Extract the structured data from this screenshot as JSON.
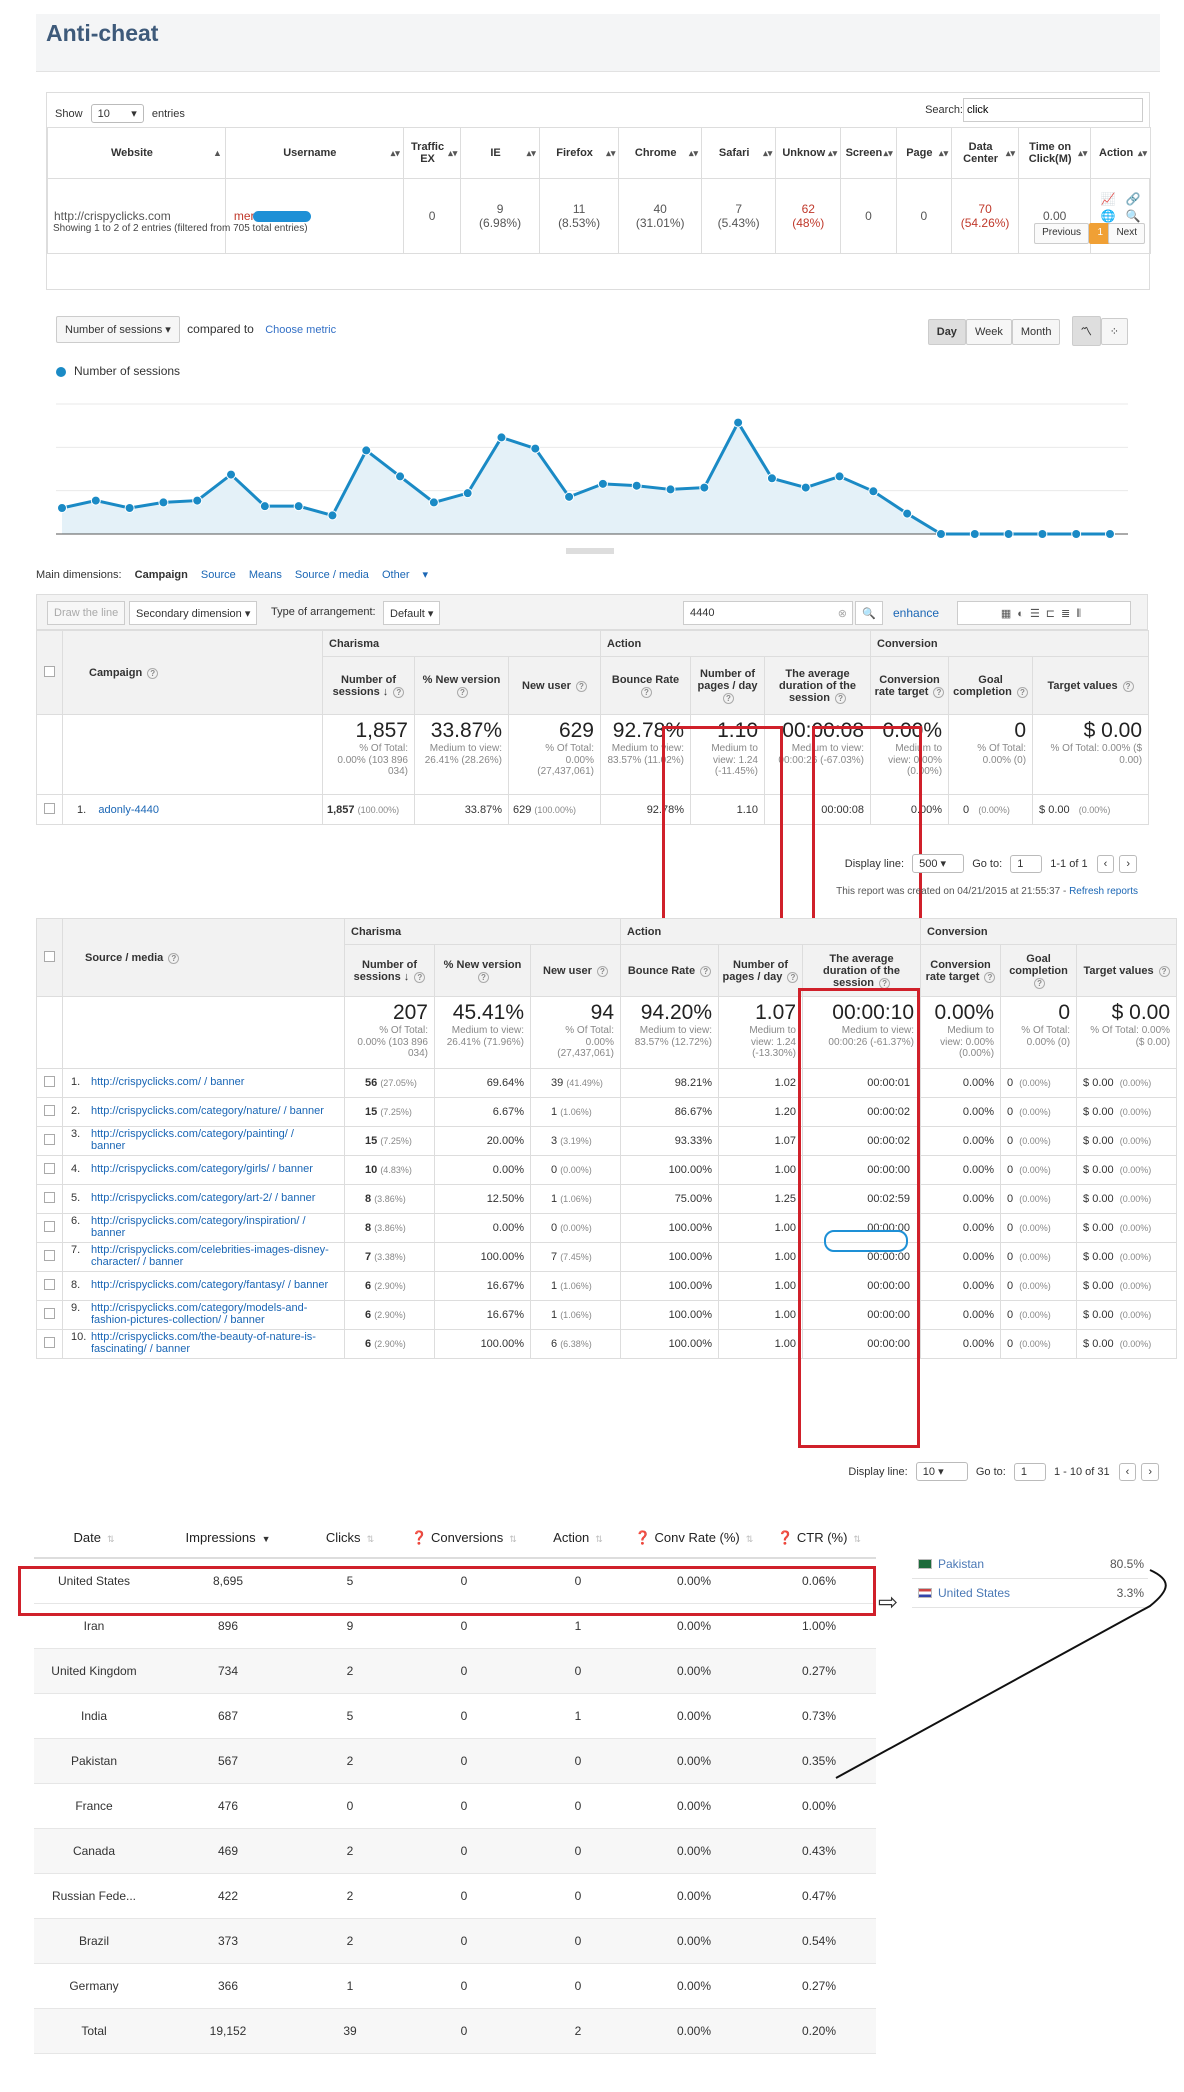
{
  "anticheat": {
    "title": "Anti-cheat",
    "show_label": "Show",
    "entries_value": "10",
    "entries_label": "entries",
    "search_label": "Search:",
    "search_value": "click",
    "columns": [
      "Website",
      "Username",
      "Traffic EX",
      "IE",
      "Firefox",
      "Chrome",
      "Safari",
      "Unknow",
      "Screen",
      "Page",
      "Data Center",
      "Time on Click(M)",
      "Action"
    ],
    "row": {
      "website": "http://crispyclicks.com",
      "username": "mer",
      "traffic_ex": "0",
      "ie": "9",
      "ie_pct": "(6.98%)",
      "firefox": "11",
      "firefox_pct": "(8.53%)",
      "chrome": "40",
      "chrome_pct": "(31.01%)",
      "safari": "7",
      "safari_pct": "(5.43%)",
      "unknow": "62",
      "unknow_pct": "(48%)",
      "screen": "0",
      "page": "0",
      "data_center": "70",
      "data_center_pct": "(54.26%)",
      "time_on_click": "0.00"
    },
    "info": "Showing 1 to 2 of 2 entries (filtered from 705 total entries)",
    "prev_label": "Previous",
    "page_label": "1",
    "next_label": "Next"
  },
  "chart_controls": {
    "metric_select": "Number of sessions",
    "compared_to": "compared to",
    "choose_metric": "Choose metric",
    "day": "Day",
    "week": "Week",
    "month": "Month"
  },
  "chart_data": {
    "type": "area",
    "series": [
      {
        "name": "Number of sessions",
        "values": [
          14,
          18,
          14,
          17,
          18,
          32,
          15,
          15,
          10,
          45,
          31,
          17,
          22,
          52,
          46,
          20,
          27,
          26,
          24,
          25,
          60,
          30,
          25,
          31,
          23,
          11,
          0,
          0,
          0,
          0,
          0,
          0
        ]
      }
    ],
    "ylim": [
      0,
      70
    ],
    "grid": true,
    "legend": "top-left",
    "colors": {
      "line": "#1a8ac5",
      "fill": "#e4f1f8"
    }
  },
  "campaign": {
    "dims_label": "Main dimensions:",
    "dims": [
      "Campaign",
      "Source",
      "Means",
      "Source / media",
      "Other"
    ],
    "draw_line": "Draw the line",
    "secondary": "Secondary dimension",
    "arrangement_label": "Type of arrangement:",
    "arrangement": "Default",
    "filter_value": "4440",
    "enhance": "enhance",
    "first_col": "Campaign",
    "groups": [
      "Charisma",
      "Action",
      "Conversion"
    ],
    "columns": [
      "Number of sessions",
      "% New version",
      "New user",
      "Bounce Rate",
      "Number of pages / day",
      "The average duration of the session",
      "Conversion rate target",
      "Goal completion",
      "Target values"
    ],
    "totals": [
      {
        "big": "1,857",
        "sub": "% Of Total: 0.00% (103 896 034)"
      },
      {
        "big": "33.87%",
        "sub": "Medium to view: 26.41% (28.26%)"
      },
      {
        "big": "629",
        "sub": "% Of Total: 0.00% (27,437,061)"
      },
      {
        "big": "92.78%",
        "sub": "Medium to view: 83.57% (11.02%)"
      },
      {
        "big": "1.10",
        "sub": "Medium to view: 1.24 (-11.45%)"
      },
      {
        "big": "00:00:08",
        "sub": "Medium to view: 00:00:26 (-67.03%)"
      },
      {
        "big": "0.00%",
        "sub": "Medium to view: 0.00% (0.00%)"
      },
      {
        "big": "0",
        "sub": "% Of Total: 0.00% (0)"
      },
      {
        "big": "$ 0.00",
        "sub": "% Of Total: 0.00% ($ 0.00)"
      }
    ],
    "row": {
      "num": "1.",
      "name": "adonly-4440",
      "sessions": "1,857",
      "sessions_pct": "(100.00%)",
      "new_version": "33.87%",
      "new_user": "629",
      "new_user_pct": "(100.00%)",
      "bounce": "92.78%",
      "pages": "1.10",
      "duration": "00:00:08",
      "conv": "0.00%",
      "goal": "0",
      "goal_pct": "(0.00%)",
      "target": "$ 0.00",
      "target_pct": "(0.00%)"
    },
    "display_line_label": "Display line:",
    "display_line": "500",
    "goto_label": "Go to:",
    "goto": "1",
    "range": "1-1 of 1",
    "created": "This report was created on 04/21/2015 at 21:55:37 -",
    "refresh": "Refresh reports"
  },
  "source_media": {
    "first_col": "Source / media",
    "groups": [
      "Charisma",
      "Action",
      "Conversion"
    ],
    "columns": [
      "Number of sessions",
      "% New version",
      "New user",
      "Bounce Rate",
      "Number of pages / day",
      "The average duration of the session",
      "Conversion rate target",
      "Goal completion",
      "Target values"
    ],
    "totals": [
      {
        "big": "207",
        "sub": "% Of Total: 0.00% (103 896 034)"
      },
      {
        "big": "45.41%",
        "sub": "Medium to view: 26.41% (71.96%)"
      },
      {
        "big": "94",
        "sub": "% Of Total: 0.00% (27,437,061)"
      },
      {
        "big": "94.20%",
        "sub": "Medium to view: 83.57% (12.72%)"
      },
      {
        "big": "1.07",
        "sub": "Medium to view: 1.24 (-13.30%)"
      },
      {
        "big": "00:00:10",
        "sub": "Medium to view: 00:00:26 (-61.37%)"
      },
      {
        "big": "0.00%",
        "sub": "Medium to view: 0.00% (0.00%)"
      },
      {
        "big": "0",
        "sub": "% Of Total: 0.00% (0)"
      },
      {
        "big": "$ 0.00",
        "sub": "% Of Total: 0.00% ($ 0.00)"
      }
    ],
    "rows": [
      {
        "num": "1.",
        "name": "http://crispyclicks.com/ / banner",
        "s": "56",
        "sp": "(27.05%)",
        "nv": "69.64%",
        "nu": "39",
        "nup": "(41.49%)",
        "br": "98.21%",
        "pg": "1.02",
        "du": "00:00:01"
      },
      {
        "num": "2.",
        "name": "http://crispyclicks.com/category/nature/ / banner",
        "s": "15",
        "sp": "(7.25%)",
        "nv": "6.67%",
        "nu": "1",
        "nup": "(1.06%)",
        "br": "86.67%",
        "pg": "1.20",
        "du": "00:00:02"
      },
      {
        "num": "3.",
        "name": "http://crispyclicks.com/category/painting/ / banner",
        "s": "15",
        "sp": "(7.25%)",
        "nv": "20.00%",
        "nu": "3",
        "nup": "(3.19%)",
        "br": "93.33%",
        "pg": "1.07",
        "du": "00:00:02"
      },
      {
        "num": "4.",
        "name": "http://crispyclicks.com/category/girls/ / banner",
        "s": "10",
        "sp": "(4.83%)",
        "nv": "0.00%",
        "nu": "0",
        "nup": "(0.00%)",
        "br": "100.00%",
        "pg": "1.00",
        "du": "00:00:00"
      },
      {
        "num": "5.",
        "name": "http://crispyclicks.com/category/art-2/ / banner",
        "s": "8",
        "sp": "(3.86%)",
        "nv": "12.50%",
        "nu": "1",
        "nup": "(1.06%)",
        "br": "75.00%",
        "pg": "1.25",
        "du": "00:02:59"
      },
      {
        "num": "6.",
        "name": "http://crispyclicks.com/category/inspiration/ / banner",
        "s": "8",
        "sp": "(3.86%)",
        "nv": "0.00%",
        "nu": "0",
        "nup": "(0.00%)",
        "br": "100.00%",
        "pg": "1.00",
        "du": "00:00:00"
      },
      {
        "num": "7.",
        "name": "http://crispyclicks.com/celebrities-images-disney-character/ / banner",
        "s": "7",
        "sp": "(3.38%)",
        "nv": "100.00%",
        "nu": "7",
        "nup": "(7.45%)",
        "br": "100.00%",
        "pg": "1.00",
        "du": "00:00:00"
      },
      {
        "num": "8.",
        "name": "http://crispyclicks.com/category/fantasy/ / banner",
        "s": "6",
        "sp": "(2.90%)",
        "nv": "16.67%",
        "nu": "1",
        "nup": "(1.06%)",
        "br": "100.00%",
        "pg": "1.00",
        "du": "00:00:00"
      },
      {
        "num": "9.",
        "name": "http://crispyclicks.com/category/models-and-fashion-pictures-collection/ / banner",
        "s": "6",
        "sp": "(2.90%)",
        "nv": "16.67%",
        "nu": "1",
        "nup": "(1.06%)",
        "br": "100.00%",
        "pg": "1.00",
        "du": "00:00:00"
      },
      {
        "num": "10.",
        "name": "http://crispyclicks.com/the-beauty-of-nature-is-fascinating/ / banner",
        "s": "6",
        "sp": "(2.90%)",
        "nv": "100.00%",
        "nu": "6",
        "nup": "(6.38%)",
        "br": "100.00%",
        "pg": "1.00",
        "du": "00:00:00"
      }
    ],
    "conv": "0.00%",
    "goal": "0",
    "goal_pct": "(0.00%)",
    "target": "$ 0.00",
    "target_pct": "(0.00%)",
    "display_line_label": "Display line:",
    "display_line": "10",
    "goto_label": "Go to:",
    "goto": "1",
    "range": "1 - 10 of 31"
  },
  "countries": {
    "columns": [
      "Date",
      "Impressions",
      "Clicks",
      "Conversions",
      "Action",
      "Conv Rate (%)",
      "CTR (%)"
    ],
    "rows": [
      [
        "United States",
        "8,695",
        "5",
        "0",
        "0",
        "0.00%",
        "0.06%"
      ],
      [
        "Iran",
        "896",
        "9",
        "0",
        "1",
        "0.00%",
        "1.00%"
      ],
      [
        "United Kingdom",
        "734",
        "2",
        "0",
        "0",
        "0.00%",
        "0.27%"
      ],
      [
        "India",
        "687",
        "5",
        "0",
        "1",
        "0.00%",
        "0.73%"
      ],
      [
        "Pakistan",
        "567",
        "2",
        "0",
        "0",
        "0.00%",
        "0.35%"
      ],
      [
        "France",
        "476",
        "0",
        "0",
        "0",
        "0.00%",
        "0.00%"
      ],
      [
        "Canada",
        "469",
        "2",
        "0",
        "0",
        "0.00%",
        "0.43%"
      ],
      [
        "Russian Fede...",
        "422",
        "2",
        "0",
        "0",
        "0.00%",
        "0.47%"
      ],
      [
        "Brazil",
        "373",
        "2",
        "0",
        "0",
        "0.00%",
        "0.54%"
      ],
      [
        "Germany",
        "366",
        "1",
        "0",
        "0",
        "0.00%",
        "0.27%"
      ],
      [
        "Total",
        "19,152",
        "39",
        "0",
        "2",
        "0.00%",
        "0.20%"
      ]
    ]
  },
  "regions": [
    {
      "country": "Pakistan",
      "value": "80.5%",
      "flag": "pk-flag-icon"
    },
    {
      "country": "United States",
      "value": "3.3%",
      "flag": "us-flag-icon"
    }
  ],
  "colors": {
    "highlight": "#d0202a",
    "accent": "#1a8ac5",
    "link": "#1a66b5"
  }
}
